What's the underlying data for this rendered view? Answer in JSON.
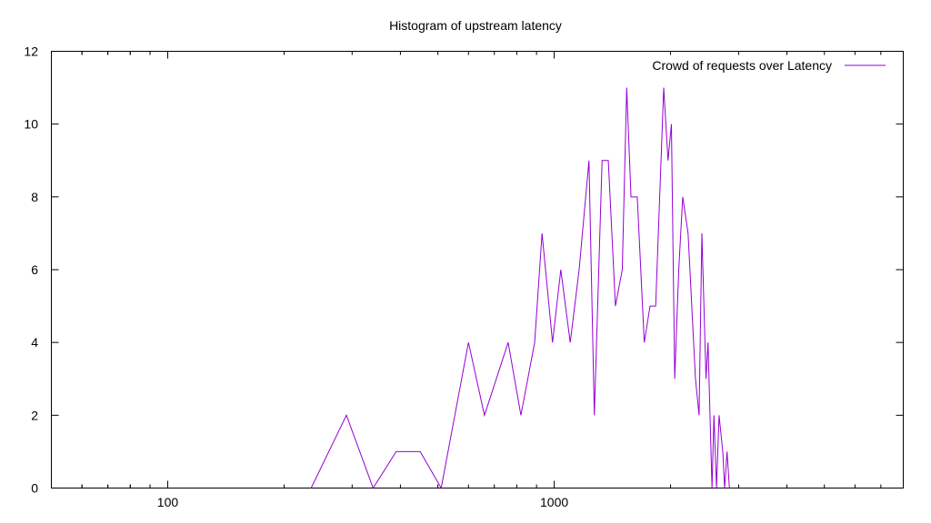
{
  "chart_data": {
    "type": "line",
    "title": "Histogram of upstream latency",
    "xlabel": "",
    "ylabel": "",
    "x_scale": "log",
    "xlim": [
      50,
      8000
    ],
    "ylim": [
      0,
      12
    ],
    "x_ticks": [
      100,
      1000
    ],
    "y_ticks": [
      0,
      2,
      4,
      6,
      8,
      10,
      12
    ],
    "grid": false,
    "legend_position": "top-right",
    "series": [
      {
        "name": "Crowd of requests over Latency",
        "color": "#9400d3",
        "points": [
          [
            235,
            0
          ],
          [
            290,
            2
          ],
          [
            340,
            0
          ],
          [
            390,
            1
          ],
          [
            450,
            1
          ],
          [
            510,
            0
          ],
          [
            600,
            4
          ],
          [
            660,
            2
          ],
          [
            760,
            4
          ],
          [
            820,
            2
          ],
          [
            890,
            4
          ],
          [
            930,
            7
          ],
          [
            990,
            4
          ],
          [
            1040,
            6
          ],
          [
            1100,
            4
          ],
          [
            1160,
            6
          ],
          [
            1230,
            9
          ],
          [
            1270,
            2
          ],
          [
            1330,
            9
          ],
          [
            1380,
            9
          ],
          [
            1440,
            5
          ],
          [
            1500,
            6
          ],
          [
            1540,
            11
          ],
          [
            1580,
            8
          ],
          [
            1640,
            8
          ],
          [
            1710,
            4
          ],
          [
            1770,
            5
          ],
          [
            1830,
            5
          ],
          [
            1920,
            11
          ],
          [
            1970,
            9
          ],
          [
            2010,
            10
          ],
          [
            2050,
            3
          ],
          [
            2100,
            6
          ],
          [
            2150,
            8
          ],
          [
            2220,
            7
          ],
          [
            2320,
            3
          ],
          [
            2370,
            2
          ],
          [
            2410,
            7
          ],
          [
            2470,
            3
          ],
          [
            2500,
            4
          ],
          [
            2560,
            0
          ],
          [
            2590,
            2
          ],
          [
            2630,
            0
          ],
          [
            2670,
            2
          ],
          [
            2730,
            1
          ],
          [
            2760,
            0
          ],
          [
            2800,
            1
          ],
          [
            2840,
            0
          ]
        ]
      }
    ]
  }
}
